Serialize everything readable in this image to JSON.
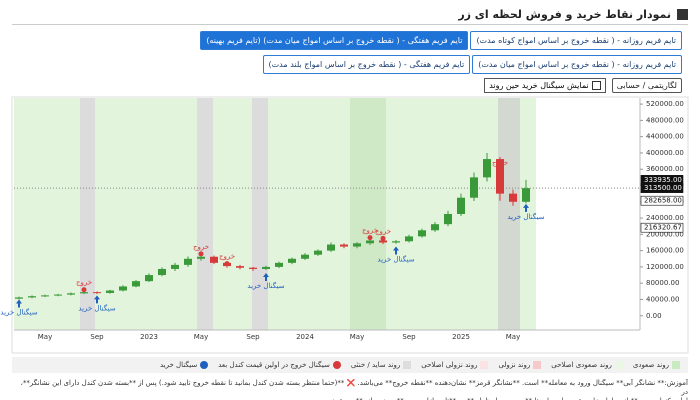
{
  "header": {
    "title": "نمودار نقاط خرید و فروش لحظه ای زر"
  },
  "buttons": [
    [
      {
        "label": "تایم فریم روزانه - ( نقطه خروج بر اساس امواج کوتاه مدت)",
        "active": false
      },
      {
        "label": "تایم فریم هفتگی - ( نقطه خروج بر اساس امواج میان مدت) (تایم فریم بهینه)",
        "active": true
      }
    ],
    [
      {
        "label": "تایم فریم روزانه - ( نقطه خروج بر اساس امواج میان مدت)",
        "active": false
      },
      {
        "label": "تایم فریم هفتگی - ( نقطه خروج بر اساس امواج بلند مدت)",
        "active": false
      }
    ]
  ],
  "controls": {
    "scale_button": "لگاریتمی / حسابی",
    "checkbox": "نمایش سیگنال خرید حین روند"
  },
  "chart_data": {
    "type": "candlestick",
    "categories": [
      null,
      null,
      "May",
      null,
      null,
      null,
      "Sep",
      null,
      null,
      null,
      "2023",
      null,
      null,
      null,
      "May",
      null,
      null,
      null,
      "Sep",
      null,
      null,
      null,
      "2024",
      null,
      null,
      null,
      "May",
      null,
      null,
      null,
      "Sep",
      null,
      null,
      null,
      "2025",
      null,
      null,
      null,
      "May",
      null
    ],
    "open": [
      42000,
      45000,
      48000,
      50000,
      52000,
      55000,
      58000,
      56000,
      62000,
      72000,
      85000,
      100000,
      115000,
      125000,
      140000,
      145000,
      130000,
      122000,
      118000,
      115000,
      120000,
      130000,
      140000,
      150000,
      160000,
      175000,
      170000,
      178000,
      185000,
      180000,
      183000,
      195000,
      210000,
      225000,
      250000,
      290000,
      340000,
      385000,
      300000,
      280000
    ],
    "high": [
      47000,
      50000,
      52000,
      54000,
      57000,
      60000,
      60000,
      64000,
      75000,
      88000,
      104000,
      119000,
      130000,
      146000,
      152000,
      148000,
      133000,
      125000,
      120000,
      123000,
      133000,
      143000,
      154000,
      163000,
      180000,
      178000,
      181000,
      189000,
      188000,
      186000,
      199000,
      214000,
      230000,
      258000,
      300000,
      352000,
      400000,
      390000,
      310000,
      333935
    ],
    "low": [
      40000,
      43000,
      46000,
      48000,
      50000,
      53000,
      53000,
      54000,
      60000,
      70000,
      83000,
      97000,
      110000,
      120000,
      135000,
      127000,
      118000,
      114000,
      110000,
      112000,
      117000,
      127000,
      137000,
      147000,
      157000,
      166000,
      166000,
      174000,
      176000,
      177000,
      180000,
      192000,
      206000,
      220000,
      245000,
      282000,
      330000,
      282658,
      270000,
      276000
    ],
    "close": [
      45000,
      48000,
      50000,
      52000,
      55000,
      58000,
      56000,
      62000,
      72000,
      85000,
      100000,
      115000,
      125000,
      140000,
      145000,
      130000,
      122000,
      118000,
      115000,
      120000,
      130000,
      140000,
      150000,
      160000,
      175000,
      170000,
      178000,
      185000,
      180000,
      183000,
      195000,
      210000,
      225000,
      250000,
      290000,
      340000,
      385000,
      300000,
      280000,
      313500
    ],
    "up_color": "#3a9a3a",
    "down_color": "#d63a3a",
    "ylim": [
      -35000,
      535000
    ],
    "yticks": [
      {
        "value": 0,
        "label": "0.00"
      },
      {
        "value": 40000,
        "label": "40000.00"
      },
      {
        "value": 80000,
        "label": "80000.00"
      },
      {
        "value": 120000,
        "label": "120000.00"
      },
      {
        "value": 160000,
        "label": "160000.00"
      },
      {
        "value": 200000,
        "label": "200000.00"
      },
      {
        "value": 240000,
        "label": "240000.00"
      },
      {
        "value": 280000,
        "label": "280000.00"
      },
      {
        "value": 320000,
        "label": "320000.00"
      },
      {
        "value": 360000,
        "label": "360000.00"
      },
      {
        "value": 400000,
        "label": "400000.00"
      },
      {
        "value": 440000,
        "label": "440000.00"
      },
      {
        "value": 480000,
        "label": "480000.00"
      },
      {
        "value": 520000,
        "label": "520000.00"
      }
    ],
    "price_labels": [
      {
        "value": 333935,
        "label": "333935.00",
        "dark": true
      },
      {
        "value": 313500,
        "label": "313500.00",
        "dark": true
      },
      {
        "value": 282658,
        "label": "282658.00",
        "dark": false
      },
      {
        "value": 216320.67,
        "label": "216320.67",
        "dark": false
      }
    ],
    "current_price": 313500,
    "buy": [
      40000,
      null,
      null,
      null,
      null,
      null,
      50000,
      null,
      null,
      null,
      null,
      null,
      null,
      null,
      null,
      null,
      null,
      null,
      null,
      105000,
      null,
      null,
      null,
      null,
      null,
      null,
      null,
      null,
      null,
      170000,
      null,
      null,
      null,
      null,
      null,
      null,
      null,
      null,
      null,
      275000
    ],
    "exit": [
      null,
      null,
      null,
      null,
      null,
      64000,
      null,
      null,
      null,
      null,
      null,
      null,
      null,
      null,
      152000,
      null,
      128000,
      null,
      null,
      null,
      null,
      null,
      null,
      null,
      null,
      null,
      null,
      192000,
      190000,
      null,
      null,
      null,
      null,
      null,
      null,
      null,
      null,
      358000,
      null,
      null
    ],
    "buy_label": "سیگنال خرید",
    "exit_label": "خروج",
    "buy_color": "#1f5fbf",
    "exit_color": "#d63a3a",
    "legend": [
      {
        "name": "روند صعودی",
        "color": "#c8ecc0"
      },
      {
        "name": "روند صعودی اصلاحی",
        "color": "#e9f7e4"
      },
      {
        "name": "روند نزولی",
        "color": "#f6c9cc"
      },
      {
        "name": "روند نزولی اصلاحی",
        "color": "#fbe3e4"
      },
      {
        "name": "روند ساید / خنثی",
        "color": "#dddddd"
      },
      {
        "name": "سیگنال خروج در اولین قیمت کندل بعد",
        "color": "#d63a3a"
      },
      {
        "name": "سیگنال خرید",
        "color": "#1f5fbf"
      }
    ]
  },
  "footer": {
    "lines": [
      "آموزش:** نشانگر آبی** سیگنال ورود به معامله** است. **نشانگر قرمز** نشان‌دهنده **نقطه خروج** می‌باشد. ❌ **(حتماً منتظر بسته شدن کندل بمانید تا نقطه خروج تأیید شود.) پس از **بسته شدن کندل دارای این نشانگر**، در",
      "اولین کندل بعدی،** از معامله خارج شوید. این داده‌ها **به‌صورت لحظه‌ای** در **تایم بازار بورس** بروزرسانی** می‌شوند."
    ]
  }
}
